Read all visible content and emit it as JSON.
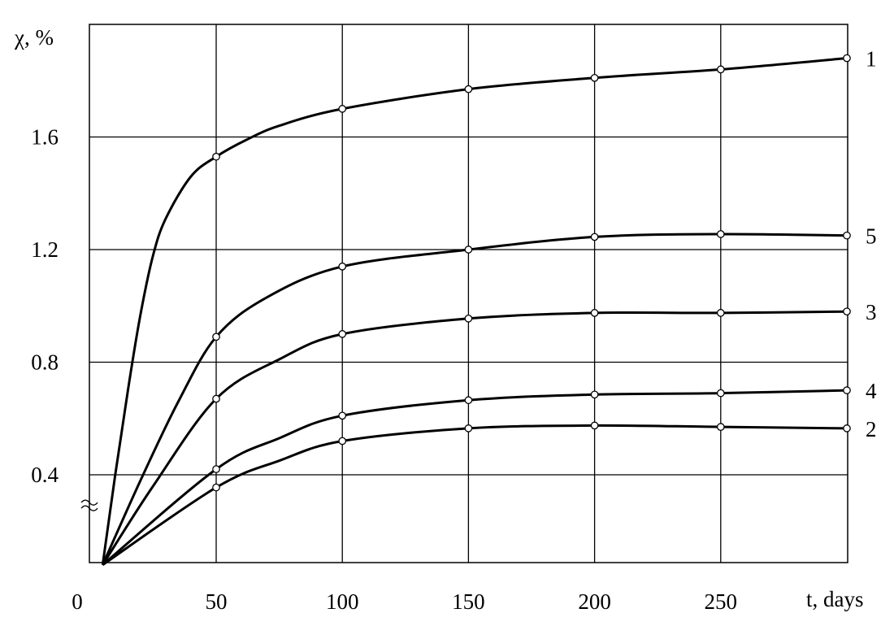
{
  "chart_data": {
    "type": "line",
    "title": "",
    "ylabel": "χ, %",
    "xlabel": "t, days",
    "xlim": [
      5,
      300
    ],
    "ylim": [
      0.08,
      2.0
    ],
    "x_ticks": [
      0,
      50,
      100,
      150,
      200,
      250
    ],
    "y_ticks": [
      0.4,
      0.8,
      1.2,
      1.6
    ],
    "grid": true,
    "axis_break_on_y": true,
    "series": [
      {
        "name": "1",
        "points": [
          [
            5,
            0.08
          ],
          [
            50,
            1.53
          ],
          [
            100,
            1.7
          ],
          [
            150,
            1.77
          ],
          [
            200,
            1.81
          ],
          [
            250,
            1.84
          ],
          [
            300,
            1.88
          ]
        ],
        "extra_curve_points": [
          [
            10,
            0.4
          ],
          [
            15,
            0.7
          ],
          [
            20,
            0.97
          ],
          [
            25,
            1.18
          ],
          [
            30,
            1.31
          ],
          [
            40,
            1.46
          ],
          [
            62,
            1.59
          ],
          [
            75,
            1.64
          ]
        ]
      },
      {
        "name": "5",
        "points": [
          [
            5,
            0.08
          ],
          [
            50,
            0.89
          ],
          [
            100,
            1.14
          ],
          [
            150,
            1.2
          ],
          [
            200,
            1.245
          ],
          [
            250,
            1.255
          ],
          [
            300,
            1.25
          ]
        ],
        "extra_curve_points": [
          [
            20,
            0.38
          ],
          [
            35,
            0.66
          ],
          [
            70,
            1.03
          ]
        ]
      },
      {
        "name": "3",
        "points": [
          [
            5,
            0.08
          ],
          [
            50,
            0.67
          ],
          [
            100,
            0.9
          ],
          [
            150,
            0.955
          ],
          [
            200,
            0.975
          ],
          [
            250,
            0.975
          ],
          [
            300,
            0.98
          ]
        ],
        "extra_curve_points": [
          [
            25,
            0.36
          ],
          [
            75,
            0.81
          ]
        ]
      },
      {
        "name": "4",
        "points": [
          [
            5,
            0.08
          ],
          [
            50,
            0.42
          ],
          [
            100,
            0.61
          ],
          [
            150,
            0.665
          ],
          [
            200,
            0.685
          ],
          [
            250,
            0.69
          ],
          [
            300,
            0.7
          ]
        ],
        "extra_curve_points": [
          [
            75,
            0.53
          ]
        ]
      },
      {
        "name": "2",
        "points": [
          [
            5,
            0.08
          ],
          [
            50,
            0.355
          ],
          [
            100,
            0.52
          ],
          [
            150,
            0.565
          ],
          [
            200,
            0.575
          ],
          [
            250,
            0.57
          ],
          [
            300,
            0.565
          ]
        ],
        "extra_curve_points": [
          [
            75,
            0.45
          ]
        ]
      }
    ]
  }
}
